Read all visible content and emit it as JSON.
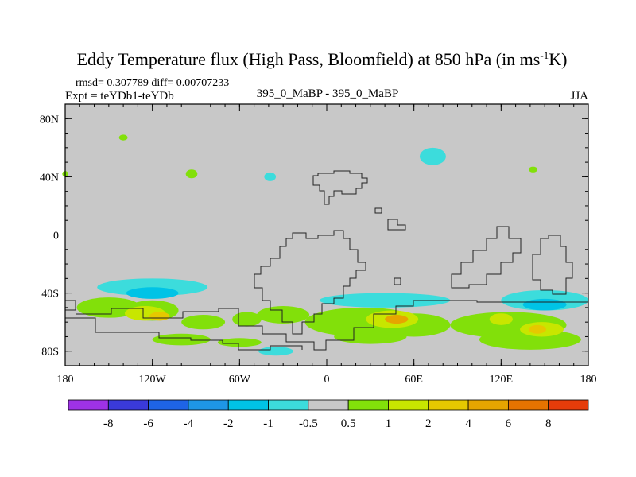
{
  "chart_data": {
    "type": "heatmap",
    "title_main": "Eddy Temperature flux (High Pass, Bloomfield) at 850 hPa (in ms",
    "title_sup": "-1",
    "title_end": "K)",
    "stats": "rmsd= 0.307789 diff= 0.00707233",
    "expt": "Expt = teYDb1-teYDb",
    "center_label": "395_0_MaBP - 395_0_MaBP",
    "season": "JJA",
    "x_ticks": [
      {
        "value": -180,
        "label": "180"
      },
      {
        "value": -120,
        "label": "120W"
      },
      {
        "value": -60,
        "label": "60W"
      },
      {
        "value": 0,
        "label": "0"
      },
      {
        "value": 60,
        "label": "60E"
      },
      {
        "value": 120,
        "label": "120E"
      },
      {
        "value": 180,
        "label": "180"
      }
    ],
    "y_ticks": [
      {
        "value": 80,
        "label": "80N"
      },
      {
        "value": 40,
        "label": "40N"
      },
      {
        "value": 0,
        "label": "0"
      },
      {
        "value": -40,
        "label": "40S"
      },
      {
        "value": -80,
        "label": "80S"
      }
    ],
    "xlim": [
      -180,
      180
    ],
    "ylim": [
      -90,
      90
    ],
    "colorbar": {
      "colors": [
        "#9e32e6",
        "#3a3ad9",
        "#1e64e6",
        "#1e96e6",
        "#00c3e6",
        "#3cdcdc",
        "#c8c8c8",
        "#82e00a",
        "#c8e600",
        "#e6c800",
        "#e6a500",
        "#e67300",
        "#e63c0a"
      ],
      "labels": [
        "-8",
        "-6",
        "-4",
        "-2",
        "-1",
        "-0.5",
        "0.5",
        "1",
        "2",
        "4",
        "6",
        "8"
      ]
    },
    "blobs": [
      {
        "lon": -140,
        "lat": 67,
        "rlon": 3,
        "rlat": 2,
        "level": 7
      },
      {
        "lon": -93,
        "lat": 42,
        "rlon": 4,
        "rlat": 3,
        "level": 7
      },
      {
        "lon": -39,
        "lat": 40,
        "rlon": 4,
        "rlat": 3,
        "level": 5
      },
      {
        "lon": 73,
        "lat": 54,
        "rlon": 9,
        "rlat": 6,
        "level": 5
      },
      {
        "lon": 142,
        "lat": 45,
        "rlon": 3,
        "rlat": 2,
        "level": 7
      },
      {
        "lon": -180,
        "lat": 42,
        "rlon": 2,
        "rlat": 2,
        "level": 7
      },
      {
        "lon": -120,
        "lat": -36,
        "rlon": 38,
        "rlat": 6,
        "level": 5
      },
      {
        "lon": -120,
        "lat": -40,
        "rlon": 18,
        "rlat": 4,
        "level": 4
      },
      {
        "lon": -150,
        "lat": -50,
        "rlon": 22,
        "rlat": 7,
        "level": 7
      },
      {
        "lon": -120,
        "lat": -52,
        "rlon": 18,
        "rlat": 7,
        "level": 7
      },
      {
        "lon": -125,
        "lat": -54,
        "rlon": 14,
        "rlat": 5,
        "level": 8
      },
      {
        "lon": -115,
        "lat": -56,
        "rlon": 7,
        "rlat": 3,
        "level": 9
      },
      {
        "lon": -85,
        "lat": -60,
        "rlon": 15,
        "rlat": 5,
        "level": 7
      },
      {
        "lon": -55,
        "lat": -58,
        "rlon": 10,
        "rlat": 5,
        "level": 7
      },
      {
        "lon": -30,
        "lat": -55,
        "rlon": 18,
        "rlat": 6,
        "level": 7
      },
      {
        "lon": -100,
        "lat": -72,
        "rlon": 20,
        "rlat": 4,
        "level": 7
      },
      {
        "lon": -60,
        "lat": -74,
        "rlon": 15,
        "rlat": 3,
        "level": 7
      },
      {
        "lon": -35,
        "lat": -80,
        "rlon": 12,
        "rlat": 3,
        "level": 5
      },
      {
        "lon": 40,
        "lat": -45,
        "rlon": 45,
        "rlat": 5,
        "level": 5
      },
      {
        "lon": 25,
        "lat": -60,
        "rlon": 40,
        "rlat": 10,
        "level": 7
      },
      {
        "lon": 60,
        "lat": -62,
        "rlon": 25,
        "rlat": 8,
        "level": 7
      },
      {
        "lon": 45,
        "lat": -58,
        "rlon": 18,
        "rlat": 6,
        "level": 8
      },
      {
        "lon": 48,
        "lat": -58,
        "rlon": 8,
        "rlat": 3,
        "level": 10
      },
      {
        "lon": 30,
        "lat": -70,
        "rlon": 25,
        "rlat": 5,
        "level": 7
      },
      {
        "lon": 150,
        "lat": -45,
        "rlon": 30,
        "rlat": 7,
        "level": 5
      },
      {
        "lon": 150,
        "lat": -48,
        "rlon": 15,
        "rlat": 4,
        "level": 4
      },
      {
        "lon": 125,
        "lat": -62,
        "rlon": 40,
        "rlat": 9,
        "level": 7
      },
      {
        "lon": 140,
        "lat": -72,
        "rlon": 35,
        "rlat": 7,
        "level": 7
      },
      {
        "lon": 148,
        "lat": -65,
        "rlon": 15,
        "rlat": 5,
        "level": 8
      },
      {
        "lon": 120,
        "lat": -58,
        "rlon": 8,
        "rlat": 4,
        "level": 8
      },
      {
        "lon": 145,
        "lat": -65,
        "rlon": 6,
        "rlat": 3,
        "level": 9
      }
    ]
  }
}
